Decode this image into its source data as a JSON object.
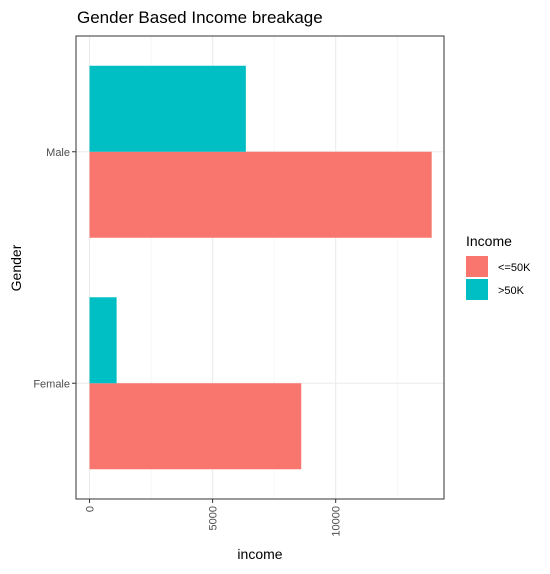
{
  "chart_data": {
    "type": "bar",
    "orientation": "horizontal",
    "position": "dodge",
    "title": "Gender Based Income breakage",
    "xlabel": "income",
    "ylabel": "Gender",
    "categories": [
      "Female",
      "Male"
    ],
    "x_ticks": [
      0,
      5000,
      10000
    ],
    "x_tick_labels": [
      "0",
      "5000",
      "10000"
    ],
    "xlim": [
      -550,
      14400
    ],
    "grid": true,
    "legend": {
      "title": "Income",
      "placement": "right",
      "entries": [
        {
          "label": "<=50K",
          "color": "#F8766D"
        },
        {
          "label": ">50K",
          "color": "#00BFC4"
        }
      ]
    },
    "series": [
      {
        "name": "<=50K",
        "color": "#F8766D",
        "values": [
          8600,
          13900
        ]
      },
      {
        "name": ">50K",
        "color": "#00BFC4",
        "values": [
          1100,
          6350
        ]
      }
    ]
  }
}
